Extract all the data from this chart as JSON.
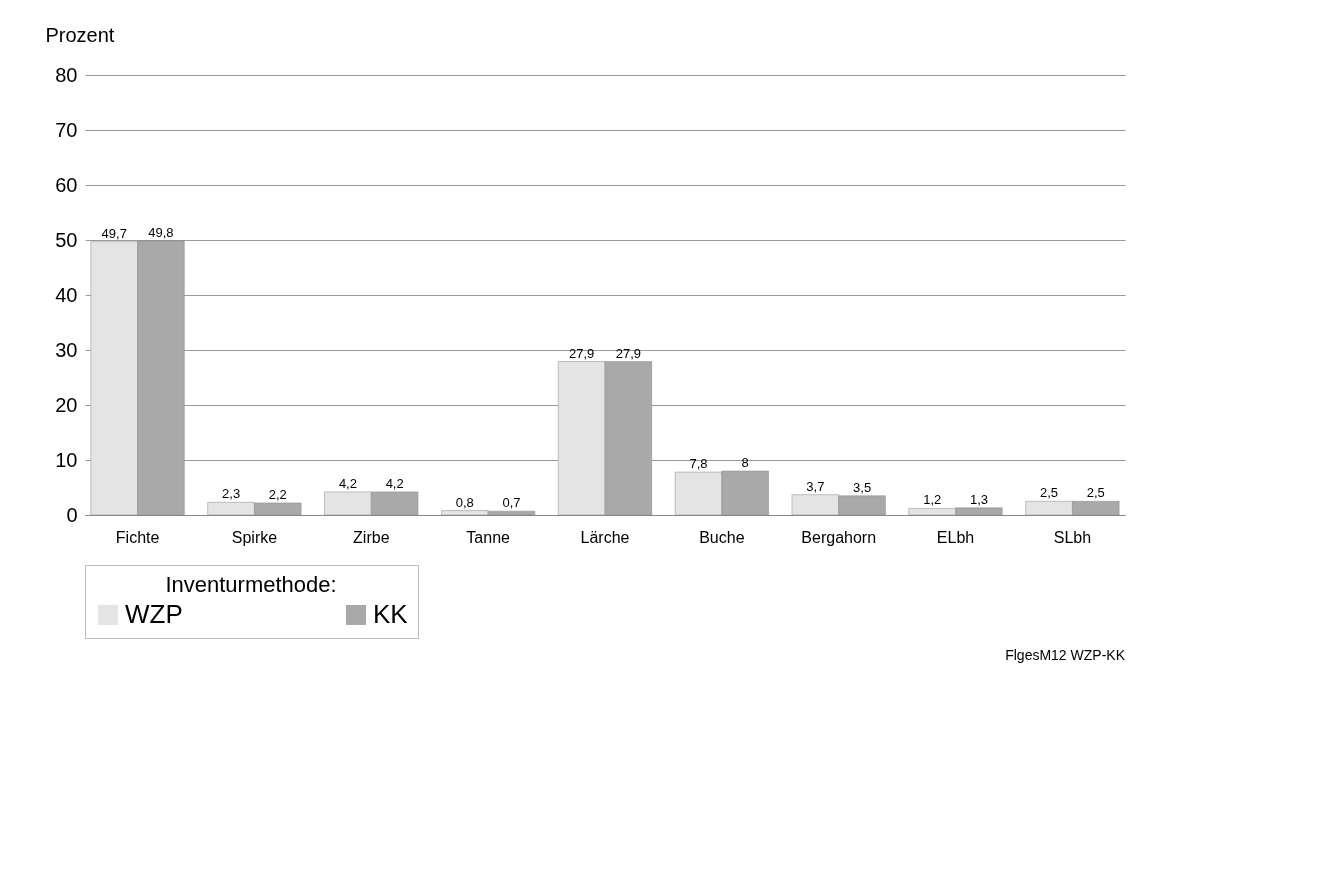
{
  "chart_data": {
    "type": "bar",
    "ylabel": "Prozent",
    "legend_title": "Inventurmethode:",
    "annotations": [
      "FlgesM12  WZP-KK"
    ],
    "categories": [
      "Fichte",
      "Spirke",
      "Zirbe",
      "Tanne",
      "Lärche",
      "Buche",
      "Bergahorn",
      "ELbh",
      "SLbh"
    ],
    "series": [
      {
        "name": "WZP",
        "color": "#e4e4e4",
        "values": [
          49.7,
          2.3,
          4.2,
          0.8,
          27.9,
          7.8,
          3.7,
          1.2,
          2.5
        ],
        "value_labels": [
          "49,7",
          "2,3",
          "4,2",
          "0,8",
          "27,9",
          "7,8",
          "3,7",
          "1,2",
          "2,5"
        ]
      },
      {
        "name": "KK",
        "color": "#a9a9a9",
        "values": [
          49.8,
          2.2,
          4.2,
          0.7,
          27.9,
          8,
          3.5,
          1.3,
          2.5
        ],
        "value_labels": [
          "49,8",
          "2,2",
          "4,2",
          "0,7",
          "27,9",
          "8",
          "3,5",
          "1,3",
          "2,5"
        ]
      }
    ],
    "ylim": [
      0,
      80
    ],
    "yticks": [
      0,
      10,
      20,
      30,
      40,
      50,
      60,
      70,
      80
    ],
    "grid": "y",
    "legend": "bottom"
  }
}
